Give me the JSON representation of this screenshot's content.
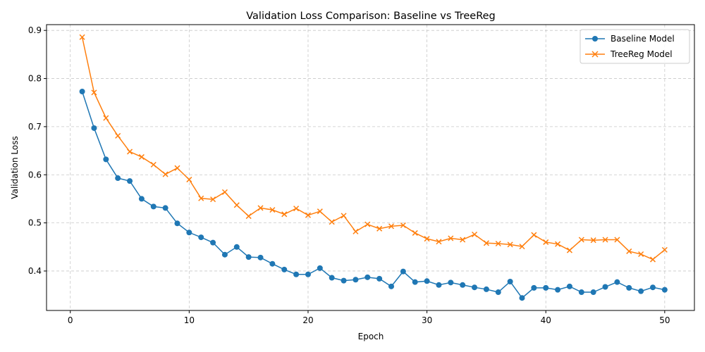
{
  "chart_data": {
    "type": "line",
    "title": "Validation Loss Comparison: Baseline vs TreeReg",
    "xlabel": "Epoch",
    "ylabel": "Validation Loss",
    "xlim": [
      -2,
      52.5
    ],
    "ylim": [
      0.318,
      0.912
    ],
    "xticks": [
      0,
      10,
      20,
      30,
      40,
      50
    ],
    "xtick_labels": [
      "0",
      "10",
      "20",
      "30",
      "40",
      "50"
    ],
    "yticks": [
      0.4,
      0.5,
      0.6,
      0.7,
      0.8,
      0.9
    ],
    "ytick_labels": [
      "0.4",
      "0.5",
      "0.6",
      "0.7",
      "0.8",
      "0.9"
    ],
    "grid": true,
    "legend_position": "top-right",
    "x": [
      1,
      2,
      3,
      4,
      5,
      6,
      7,
      8,
      9,
      10,
      11,
      12,
      13,
      14,
      15,
      16,
      17,
      18,
      19,
      20,
      21,
      22,
      23,
      24,
      25,
      26,
      27,
      28,
      29,
      30,
      31,
      32,
      33,
      34,
      35,
      36,
      37,
      38,
      39,
      40,
      41,
      42,
      43,
      44,
      45,
      46,
      47,
      48,
      49,
      50
    ],
    "series": [
      {
        "name": "Baseline Model",
        "color": "#1f77b4",
        "marker": "circle",
        "values": [
          0.773,
          0.697,
          0.632,
          0.593,
          0.587,
          0.55,
          0.534,
          0.531,
          0.499,
          0.48,
          0.47,
          0.459,
          0.434,
          0.45,
          0.429,
          0.428,
          0.415,
          0.403,
          0.393,
          0.393,
          0.406,
          0.386,
          0.38,
          0.382,
          0.387,
          0.384,
          0.368,
          0.399,
          0.377,
          0.379,
          0.371,
          0.376,
          0.371,
          0.366,
          0.362,
          0.356,
          0.378,
          0.344,
          0.365,
          0.365,
          0.361,
          0.368,
          0.356,
          0.356,
          0.367,
          0.377,
          0.365,
          0.358,
          0.366,
          0.361
        ]
      },
      {
        "name": "TreeReg Model",
        "color": "#ff7f0e",
        "marker": "x",
        "values": [
          0.886,
          0.771,
          0.718,
          0.681,
          0.648,
          0.637,
          0.621,
          0.601,
          0.614,
          0.59,
          0.551,
          0.549,
          0.564,
          0.537,
          0.514,
          0.531,
          0.527,
          0.518,
          0.53,
          0.516,
          0.524,
          0.502,
          0.515,
          0.482,
          0.497,
          0.488,
          0.493,
          0.495,
          0.479,
          0.467,
          0.461,
          0.468,
          0.465,
          0.476,
          0.458,
          0.457,
          0.455,
          0.451,
          0.475,
          0.46,
          0.456,
          0.443,
          0.465,
          0.464,
          0.465,
          0.465,
          0.441,
          0.435,
          0.424,
          0.444
        ]
      }
    ]
  }
}
